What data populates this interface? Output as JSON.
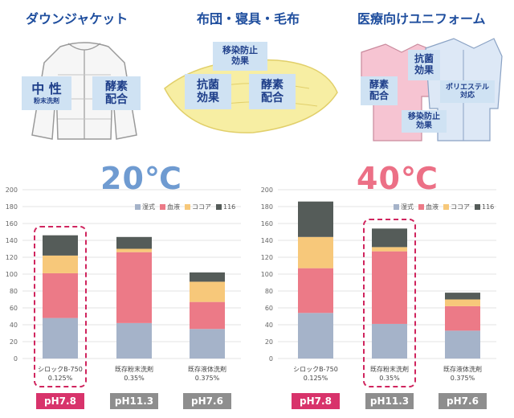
{
  "top": {
    "sections": [
      {
        "title": "ダウンジャケット",
        "tags": [
          "中 性",
          "粉末洗剤",
          "酵素",
          "配合"
        ]
      },
      {
        "title": "布団・寝具・毛布",
        "tags": [
          "移染防止",
          "効果",
          "抗菌",
          "効果",
          "酵素",
          "配合"
        ]
      },
      {
        "title": "医療向けユニフォーム",
        "tags": [
          "酵素",
          "配合",
          "抗菌",
          "効果",
          "ポリエステル",
          "対応",
          "移染防止",
          "効果"
        ]
      }
    ]
  },
  "colors": {
    "series": [
      "#a5b3c9",
      "#ec7a87",
      "#f7c87a",
      "#555c59"
    ],
    "temp20": "#6f9bd1",
    "temp40": "#ec7086",
    "highlight": "#d0255e",
    "ph_pink": "#d8336b",
    "ph_gray": "#8e8e8e"
  },
  "chart_data": [
    {
      "type": "bar",
      "stacked": true,
      "title": "20℃",
      "legend": [
        "湿式",
        "血液",
        "ココア",
        "116"
      ],
      "ylim": [
        0,
        200
      ],
      "yticks": [
        0,
        20,
        40,
        60,
        80,
        100,
        120,
        140,
        160,
        180,
        200
      ],
      "categories": [
        {
          "name": "シロックB-750",
          "conc": "0.125%",
          "ph": "pH7.8",
          "highlight": true,
          "ph_color": "pink"
        },
        {
          "name": "既存粉末洗剤",
          "conc": "0.35%",
          "ph": "pH11.3",
          "highlight": false,
          "ph_color": "gray"
        },
        {
          "name": "既存液体洗剤",
          "conc": "0.375%",
          "ph": "pH7.6",
          "highlight": false,
          "ph_color": "gray"
        }
      ],
      "series": [
        {
          "name": "湿式",
          "values": [
            48,
            42,
            35
          ]
        },
        {
          "name": "血液",
          "values": [
            53,
            84,
            32
          ]
        },
        {
          "name": "ココア",
          "values": [
            21,
            4,
            24
          ]
        },
        {
          "name": "116",
          "values": [
            24,
            14,
            11
          ]
        }
      ]
    },
    {
      "type": "bar",
      "stacked": true,
      "title": "40℃",
      "legend": [
        "湿式",
        "血液",
        "ココア",
        "116"
      ],
      "ylim": [
        0,
        200
      ],
      "yticks": [
        0,
        20,
        40,
        60,
        80,
        100,
        120,
        140,
        160,
        180,
        200
      ],
      "categories": [
        {
          "name": "シロックB-750",
          "conc": "0.125%",
          "ph": "pH7.8",
          "highlight": false,
          "ph_color": "pink"
        },
        {
          "name": "既存粉末洗剤",
          "conc": "0.35%",
          "ph": "pH11.3",
          "highlight": true,
          "ph_color": "gray"
        },
        {
          "name": "既存液体洗剤",
          "conc": "0.375%",
          "ph": "pH7.6",
          "highlight": false,
          "ph_color": "gray"
        }
      ],
      "series": [
        {
          "name": "湿式",
          "values": [
            54,
            41,
            33
          ]
        },
        {
          "name": "血液",
          "values": [
            53,
            86,
            29
          ]
        },
        {
          "name": "ココア",
          "values": [
            37,
            5,
            8
          ]
        },
        {
          "name": "116",
          "values": [
            42,
            22,
            8
          ]
        }
      ]
    }
  ]
}
